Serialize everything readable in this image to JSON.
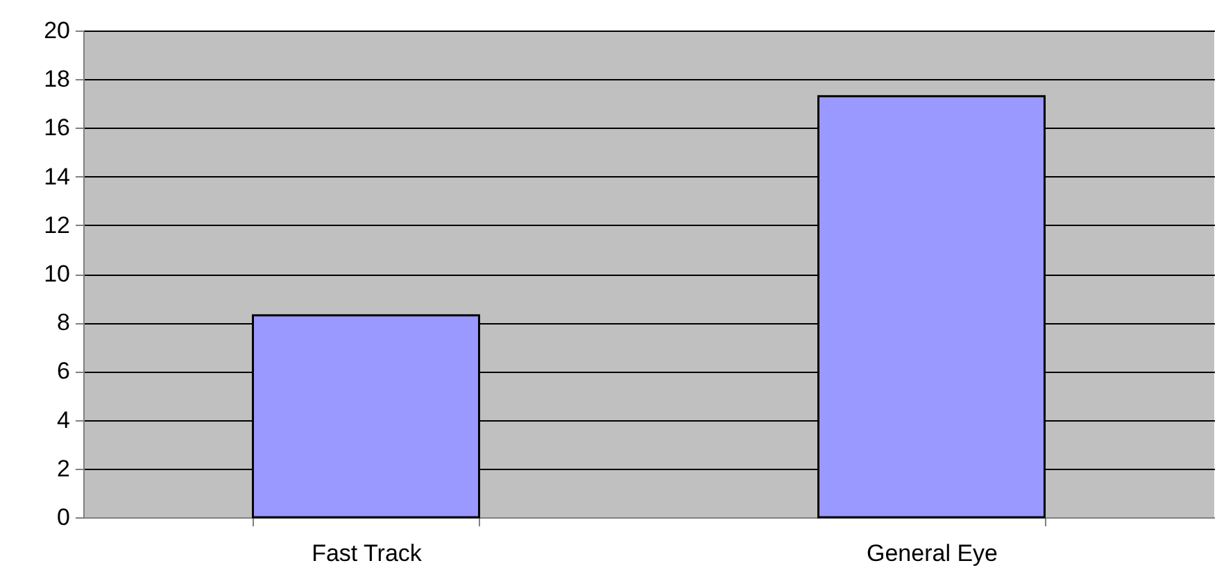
{
  "chart_data": {
    "type": "bar",
    "categories": [
      "Fast Track",
      "General Eye"
    ],
    "values": [
      8.3,
      17.3
    ],
    "color": "#9999ff",
    "ylim": [
      0,
      20
    ],
    "yticks": [
      0,
      2,
      4,
      6,
      8,
      10,
      12,
      14,
      16,
      18,
      20
    ],
    "grid": "y"
  }
}
